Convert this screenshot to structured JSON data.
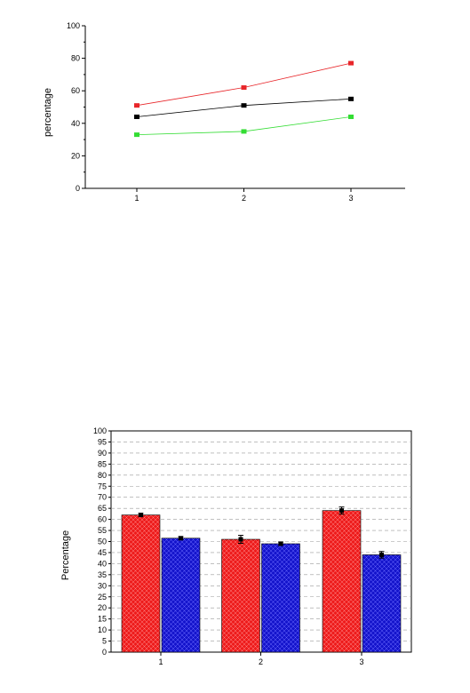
{
  "chart_data": [
    {
      "type": "line",
      "title": "",
      "xlabel": "",
      "ylabel": "percentage",
      "x": [
        1,
        2,
        3
      ],
      "x_tick_labels": [
        "1",
        "2",
        "3"
      ],
      "ylim": [
        0,
        100
      ],
      "y_ticks": [
        0,
        20,
        40,
        60,
        80,
        100
      ],
      "y_tick_labels": [
        "0",
        "20",
        "40",
        "60",
        "80",
        "100"
      ],
      "grid": false,
      "legend": "none",
      "series": [
        {
          "values": [
            51,
            62,
            77
          ],
          "color": "#e8262a"
        },
        {
          "values": [
            44,
            51,
            55
          ],
          "color": "#000000"
        },
        {
          "values": [
            33,
            35,
            44
          ],
          "color": "#33dd33"
        }
      ]
    },
    {
      "type": "bar",
      "title": "",
      "xlabel": "",
      "ylabel": "Percentage",
      "categories": [
        "1",
        "2",
        "3"
      ],
      "ylim": [
        0,
        100
      ],
      "y_ticks": [
        0,
        5,
        10,
        15,
        20,
        25,
        30,
        35,
        40,
        45,
        50,
        55,
        60,
        65,
        70,
        75,
        80,
        85,
        90,
        95,
        100
      ],
      "y_tick_labels": [
        "0",
        "5",
        "10",
        "15",
        "20",
        "25",
        "30",
        "35",
        "40",
        "45",
        "50",
        "55",
        "60",
        "65",
        "70",
        "75",
        "80",
        "85",
        "90",
        "95",
        "100"
      ],
      "grid": true,
      "grid_style": "dashed horizontal",
      "legend": "none",
      "series": [
        {
          "values": [
            62,
            51,
            64
          ],
          "errors": [
            0.7,
            1.8,
            1.6
          ],
          "color": "#ee1c1c"
        },
        {
          "values": [
            51.5,
            49,
            44
          ],
          "errors": [
            0.7,
            0.8,
            1.5
          ],
          "color": "#1515cc"
        }
      ]
    }
  ]
}
